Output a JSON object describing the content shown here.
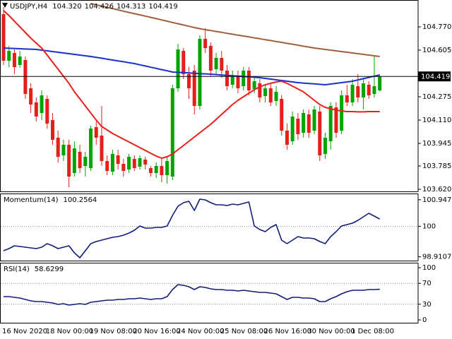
{
  "chart_data": [
    {
      "type": "candlestick",
      "title": "USDJPY,H4",
      "last_labels": [
        "104.320",
        "104.426",
        "104.313",
        "104.419"
      ],
      "open": [
        104.86,
        104.53,
        104.585,
        104.5,
        104.535,
        104.335,
        104.235,
        104.16,
        104.26,
        104.11,
        103.985,
        103.86,
        103.935,
        103.735,
        103.885,
        103.785,
        103.77,
        104.06,
        104,
        103.82,
        103.745,
        103.86,
        103.8,
        103.76,
        103.835,
        103.78,
        103.83,
        103.77,
        103.735,
        103.785,
        103.72,
        103.71,
        104.335,
        104.6,
        104.435,
        104.46,
        104.21,
        104.685,
        104.635,
        104.47,
        104.55,
        104.46,
        104.36,
        104.42,
        104.35,
        104.46,
        104.33,
        104.37,
        104.28,
        104.335,
        104.245,
        104.26,
        104.035,
        103.96,
        104.12,
        104.02,
        104.15,
        104.035,
        104.17,
        103.87,
        103.96,
        104.2,
        104.035,
        104.285,
        104.235,
        104.35,
        104.27,
        104.36,
        104.295,
        104.32
      ],
      "high": [
        104.91,
        104.635,
        104.61,
        104.6,
        104.56,
        104.37,
        104.27,
        104.32,
        104.285,
        104.16,
        104.035,
        103.97,
        103.97,
        103.96,
        103.935,
        103.885,
        104.07,
        104.1,
        104.21,
        103.86,
        103.9,
        103.9,
        103.835,
        103.87,
        103.86,
        103.86,
        103.85,
        103.785,
        103.81,
        103.835,
        103.85,
        104.36,
        104.65,
        104.62,
        104.485,
        104.5,
        104.71,
        104.76,
        104.66,
        104.585,
        104.6,
        104.5,
        104.46,
        104.46,
        104.485,
        104.485,
        104.41,
        104.4,
        104.36,
        104.37,
        104.35,
        104.285,
        104.085,
        104.17,
        104.16,
        104.185,
        104.185,
        104.21,
        104.21,
        104.02,
        104.235,
        104.235,
        104.32,
        104.36,
        104.4,
        104.435,
        104.4,
        104.385,
        104.56,
        104.426
      ],
      "low": [
        104.5,
        104.485,
        104.435,
        104.48,
        104.26,
        104.16,
        104.1,
        104.11,
        104.05,
        103.935,
        103.81,
        103.82,
        103.635,
        103.71,
        103.735,
        103.71,
        103.75,
        103.935,
        103.785,
        103.72,
        103.72,
        103.76,
        103.71,
        103.735,
        103.75,
        103.76,
        103.76,
        103.71,
        103.7,
        103.67,
        103.66,
        103.685,
        104.31,
        104.4,
        104.26,
        104.15,
        104.185,
        104.585,
        104.42,
        104.435,
        104.41,
        104.32,
        104.335,
        104.3,
        104.32,
        104.285,
        104.3,
        104.235,
        104.235,
        104.21,
        104.21,
        104,
        103.9,
        103.935,
        103.97,
        103.985,
        103.985,
        104.01,
        103.82,
        103.835,
        103.9,
        103.985,
        104.01,
        104.21,
        104.21,
        104.235,
        104.185,
        104.26,
        104.27,
        104.313
      ],
      "close": [
        104.53,
        104.6,
        104.485,
        104.56,
        104.295,
        104.22,
        104.135,
        104.285,
        104.085,
        103.97,
        103.85,
        103.935,
        103.71,
        103.91,
        103.77,
        103.85,
        104.05,
        103.985,
        103.82,
        103.75,
        103.87,
        103.8,
        103.75,
        103.85,
        103.77,
        103.84,
        103.795,
        103.735,
        103.785,
        103.72,
        103.82,
        104.335,
        104.61,
        104.435,
        104.335,
        104.21,
        104.685,
        104.62,
        104.46,
        104.55,
        104.46,
        104.35,
        104.42,
        104.335,
        104.46,
        104.32,
        104.385,
        104.27,
        104.335,
        104.235,
        104.31,
        104.035,
        103.935,
        104.135,
        104.01,
        104.16,
        104.02,
        104.185,
        103.86,
        103.985,
        104.21,
        104.02,
        104.285,
        104.235,
        104.36,
        104.27,
        104.37,
        104.285,
        104.35,
        104.419
      ],
      "up_color": "#00a400",
      "down_color": "#e5201b",
      "last_price_line": true,
      "series": [
        {
          "color": "#a0603a",
          "values": [
            null,
            null,
            null,
            null,
            null,
            null,
            null,
            null,
            null,
            null,
            null,
            null,
            null,
            null,
            null,
            null,
            104.935,
            104.926,
            104.917,
            104.908,
            104.899,
            104.89,
            104.881,
            104.872,
            104.863,
            104.855,
            104.846,
            104.837,
            104.828,
            104.819,
            104.81,
            104.801,
            104.792,
            104.783,
            104.774,
            104.765,
            104.757,
            104.75,
            104.744,
            104.737,
            104.731,
            104.724,
            104.718,
            104.711,
            104.705,
            104.699,
            104.692,
            104.686,
            104.679,
            104.673,
            104.666,
            104.66,
            104.653,
            104.647,
            104.64,
            104.633,
            104.627,
            104.62,
            104.615,
            104.61,
            104.605,
            104.6,
            104.595,
            104.59,
            104.585,
            104.58,
            104.575,
            104.57,
            104.565,
            104.56
          ]
        },
        {
          "color": "#1a2fd0",
          "values": [
            104.62,
            104.618,
            104.617,
            104.615,
            104.613,
            104.612,
            104.61,
            104.605,
            104.6,
            104.595,
            104.59,
            104.585,
            104.58,
            104.575,
            104.57,
            104.565,
            104.56,
            104.554,
            104.548,
            104.541,
            104.535,
            104.529,
            104.523,
            104.516,
            104.51,
            104.501,
            104.493,
            104.484,
            104.476,
            104.467,
            104.459,
            104.45,
            104.448,
            104.446,
            104.444,
            104.441,
            104.439,
            104.437,
            104.435,
            104.432,
            104.429,
            104.427,
            104.424,
            104.421,
            104.418,
            104.416,
            104.413,
            104.41,
            104.405,
            104.4,
            104.395,
            104.39,
            104.385,
            104.38,
            104.375,
            104.372,
            104.369,
            104.366,
            104.363,
            104.36,
            104.365,
            104.37,
            104.375,
            104.38,
            104.385,
            104.394,
            104.403,
            104.412,
            104.421,
            104.43
          ]
        },
        {
          "color": "#e8201a",
          "values": [
            104.885,
            104.85,
            104.81,
            104.77,
            104.73,
            104.69,
            104.655,
            104.62,
            104.57,
            104.52,
            104.47,
            104.42,
            104.37,
            104.31,
            104.26,
            104.21,
            104.16,
            104.11,
            104.065,
            104.04,
            104.015,
            103.995,
            103.975,
            103.955,
            103.935,
            103.915,
            103.895,
            103.875,
            103.855,
            103.84,
            103.85,
            103.87,
            103.9,
            103.93,
            103.96,
            103.99,
            104.02,
            104.05,
            104.08,
            104.115,
            104.15,
            104.185,
            104.22,
            104.25,
            104.275,
            104.3,
            104.325,
            104.345,
            104.36,
            104.37,
            104.38,
            104.385,
            104.37,
            104.35,
            104.33,
            104.31,
            104.28,
            104.25,
            104.22,
            104.2,
            104.19,
            104.18,
            104.175,
            104.17,
            104.17,
            104.168,
            104.168,
            104.17,
            104.17,
            104.17
          ]
        }
      ],
      "ylim": [
        103.6,
        104.96
      ],
      "yticks": [
        {
          "value": 104.77,
          "label": "104.770"
        },
        104.605,
        104.275,
        {
          "value": 104.11,
          "label": "104.110"
        },
        103.945,
        103.785,
        {
          "value": 103.62,
          "label": "103.620"
        }
      ]
    },
    {
      "type": "line",
      "title": "Momentum(14)",
      "series": [
        {
          "color": "#101c78",
          "values": [
            99.128,
            99.204,
            99.305,
            99.279,
            99.254,
            99.229,
            99.204,
            99.254,
            99.38,
            99.305,
            99.204,
            99.254,
            99.305,
            99.052,
            98.876,
            99.128,
            99.38,
            99.456,
            99.506,
            99.557,
            99.607,
            99.632,
            99.683,
            99.758,
            99.859,
            100.01,
            99.935,
            99.935,
            99.96,
            99.96,
            100.01,
            100.389,
            100.716,
            100.842,
            100.893,
            100.565,
            100.968,
            100.943,
            100.842,
            100.767,
            100.767,
            100.741,
            100.792,
            100.767,
            100.817,
            100.867,
            100.01,
            99.884,
            99.809,
            99.96,
            100.061,
            99.506,
            99.38,
            99.506,
            99.632,
            99.582,
            99.582,
            99.557,
            99.456,
            99.38,
            99.632,
            99.809,
            100.01,
            100.061,
            100.111,
            100.212,
            100.338,
            100.464,
            100.363,
            100.2564
          ]
        }
      ],
      "ylim": [
        98.75,
        101.17
      ],
      "yticks": [
        100.9472,
        100,
        98.9107
      ],
      "levels": [
        100
      ]
    },
    {
      "type": "line",
      "title": "RSI(14)",
      "categories": [
        "16 Nov 2020",
        null,
        null,
        null,
        null,
        null,
        null,
        null,
        "18 Nov 00:00",
        null,
        null,
        null,
        null,
        null,
        null,
        null,
        "19 Nov 08:00",
        null,
        null,
        null,
        null,
        null,
        null,
        null,
        "20 Nov 16:00",
        null,
        null,
        null,
        null,
        null,
        null,
        null,
        "24 Nov 00:00",
        null,
        null,
        null,
        null,
        null,
        null,
        null,
        "25 Nov 08:00",
        null,
        null,
        null,
        null,
        null,
        null,
        null,
        "26 Nov 16:00",
        null,
        null,
        null,
        null,
        null,
        null,
        null,
        "30 Nov 00:00",
        null,
        null,
        null,
        null,
        null,
        null,
        null,
        "1 Dec 08:00",
        null,
        null,
        null,
        null,
        null
      ],
      "series": [
        {
          "color": "#101c78",
          "values": [
            44.59,
            44.59,
            43.24,
            41.89,
            39.19,
            36.49,
            35.14,
            35.14,
            33.78,
            32.43,
            29.73,
            31.08,
            28.38,
            29.73,
            31.08,
            29.73,
            33.78,
            35.14,
            36.49,
            37.84,
            37.84,
            39.19,
            39.19,
            40.54,
            40.54,
            41.89,
            40.54,
            39.19,
            40.54,
            40.54,
            44.59,
            58.11,
            67.57,
            66.22,
            63.51,
            58.11,
            63.51,
            62.16,
            59.46,
            58.11,
            58.11,
            56.76,
            56.76,
            55.41,
            56.76,
            55.41,
            54.05,
            52.7,
            52.7,
            51.35,
            50,
            44.59,
            39.19,
            43.24,
            43.24,
            41.89,
            41.89,
            40.54,
            35.14,
            35.14,
            40.54,
            44.59,
            50,
            54.05,
            56.76,
            56.76,
            56.76,
            58.11,
            58.11,
            58.6299
          ]
        }
      ],
      "ylim": [
        -6.8,
        109.5
      ],
      "yticks": [
        100,
        70,
        30,
        0
      ],
      "levels": [
        70,
        30
      ]
    }
  ]
}
